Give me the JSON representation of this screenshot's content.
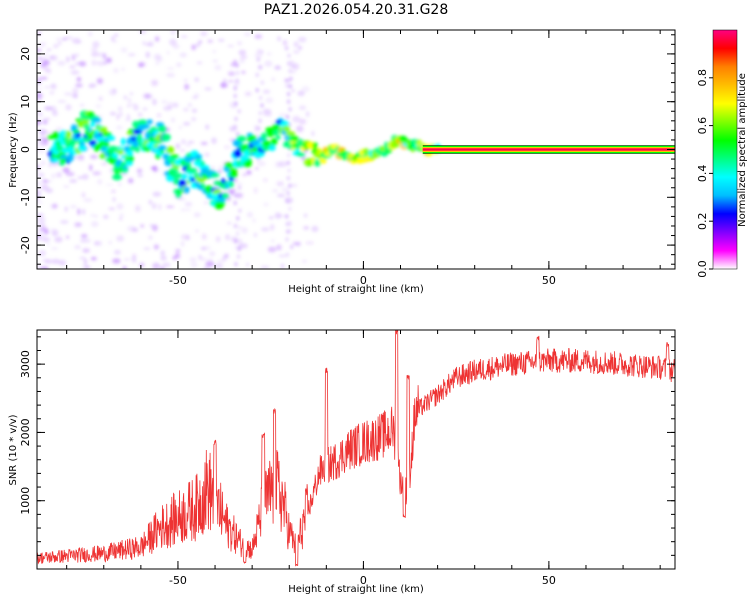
{
  "figure": {
    "title": "PAZ1.2026.054.20.31.G28"
  },
  "chart_data": [
    {
      "type": "heatmap",
      "name": "spectrogram",
      "xlabel": "Height of straight line (km)",
      "ylabel": "Frequency (Hz)",
      "xlim": [
        -88,
        84
      ],
      "ylim": [
        -25,
        25
      ],
      "xticks": [
        -50,
        0,
        50
      ],
      "yticks": [
        -20,
        -10,
        0,
        10,
        20
      ],
      "colorbar": {
        "label": "Normalized spectral amplitude",
        "range": [
          0,
          1
        ],
        "ticks": [
          0.0,
          0.2,
          0.4,
          0.6,
          0.8
        ],
        "colormap": [
          "#ffffff",
          "#ff00ff",
          "#8000ff",
          "#0000ff",
          "#00bfff",
          "#00ffff",
          "#00ff80",
          "#00ff00",
          "#80ff00",
          "#ffff00",
          "#ffbf00",
          "#ff8000",
          "#ff0000",
          "#ff0080"
        ]
      },
      "ridge": [
        {
          "x": -80,
          "y": 0
        },
        {
          "x": -74,
          "y": 5
        },
        {
          "x": -66,
          "y": -3
        },
        {
          "x": -60,
          "y": 4
        },
        {
          "x": -55,
          "y": 2
        },
        {
          "x": -50,
          "y": -6
        },
        {
          "x": -45,
          "y": -4
        },
        {
          "x": -42,
          "y": -7
        },
        {
          "x": -38,
          "y": -9
        },
        {
          "x": -33,
          "y": 0
        },
        {
          "x": -27,
          "y": 1
        },
        {
          "x": -22,
          "y": 4
        },
        {
          "x": -18,
          "y": 0
        },
        {
          "x": -13,
          "y": -1
        },
        {
          "x": -8,
          "y": 0
        },
        {
          "x": -3,
          "y": -2
        },
        {
          "x": 2,
          "y": -1
        },
        {
          "x": 6,
          "y": 0
        },
        {
          "x": 9,
          "y": 2
        },
        {
          "x": 13,
          "y": 1
        },
        {
          "x": 18,
          "y": 0
        },
        {
          "x": 84,
          "y": 0
        }
      ]
    },
    {
      "type": "line",
      "name": "snr",
      "xlabel": "Height of straight line (km)",
      "ylabel": "SNR (10 * v/v)",
      "xlim": [
        -88,
        84
      ],
      "ylim": [
        0,
        3500
      ],
      "xticks": [
        -50,
        0,
        50
      ],
      "yticks": [
        1000,
        2000,
        3000
      ],
      "color": "#ee3333",
      "envelope": [
        {
          "x": -88,
          "y": 160
        },
        {
          "x": -70,
          "y": 230
        },
        {
          "x": -60,
          "y": 320
        },
        {
          "x": -55,
          "y": 600
        },
        {
          "x": -50,
          "y": 750
        },
        {
          "x": -45,
          "y": 900
        },
        {
          "x": -42,
          "y": 1200
        },
        {
          "x": -40,
          "y": 1000
        },
        {
          "x": -37,
          "y": 650
        },
        {
          "x": -33,
          "y": 380
        },
        {
          "x": -30,
          "y": 280
        },
        {
          "x": -27,
          "y": 900
        },
        {
          "x": -24,
          "y": 1200
        },
        {
          "x": -22,
          "y": 1050
        },
        {
          "x": -20,
          "y": 550
        },
        {
          "x": -18,
          "y": 300
        },
        {
          "x": -16,
          "y": 700
        },
        {
          "x": -14,
          "y": 1000
        },
        {
          "x": -12,
          "y": 1400
        },
        {
          "x": -10,
          "y": 1500
        },
        {
          "x": -7,
          "y": 1600
        },
        {
          "x": -4,
          "y": 1750
        },
        {
          "x": 0,
          "y": 1850
        },
        {
          "x": 5,
          "y": 1950
        },
        {
          "x": 8,
          "y": 2050
        },
        {
          "x": 10,
          "y": 1300
        },
        {
          "x": 12,
          "y": 1100
        },
        {
          "x": 14,
          "y": 2300
        },
        {
          "x": 20,
          "y": 2550
        },
        {
          "x": 25,
          "y": 2800
        },
        {
          "x": 30,
          "y": 2900
        },
        {
          "x": 40,
          "y": 3000
        },
        {
          "x": 50,
          "y": 3050
        },
        {
          "x": 60,
          "y": 3050
        },
        {
          "x": 70,
          "y": 3000
        },
        {
          "x": 80,
          "y": 2950
        },
        {
          "x": 84,
          "y": 2900
        }
      ],
      "spikes": [
        {
          "x": -40,
          "y": 1900
        },
        {
          "x": -27,
          "y": 2000
        },
        {
          "x": -24,
          "y": 2350
        },
        {
          "x": -10,
          "y": 2950
        },
        {
          "x": 9,
          "y": 3500
        },
        {
          "x": 12,
          "y": 2850
        },
        {
          "x": 47,
          "y": 3420
        },
        {
          "x": 82,
          "y": 3320
        }
      ],
      "dips": [
        {
          "x": 11,
          "y": 750
        },
        {
          "x": -18,
          "y": 30
        },
        {
          "x": -32,
          "y": 80
        }
      ]
    }
  ]
}
